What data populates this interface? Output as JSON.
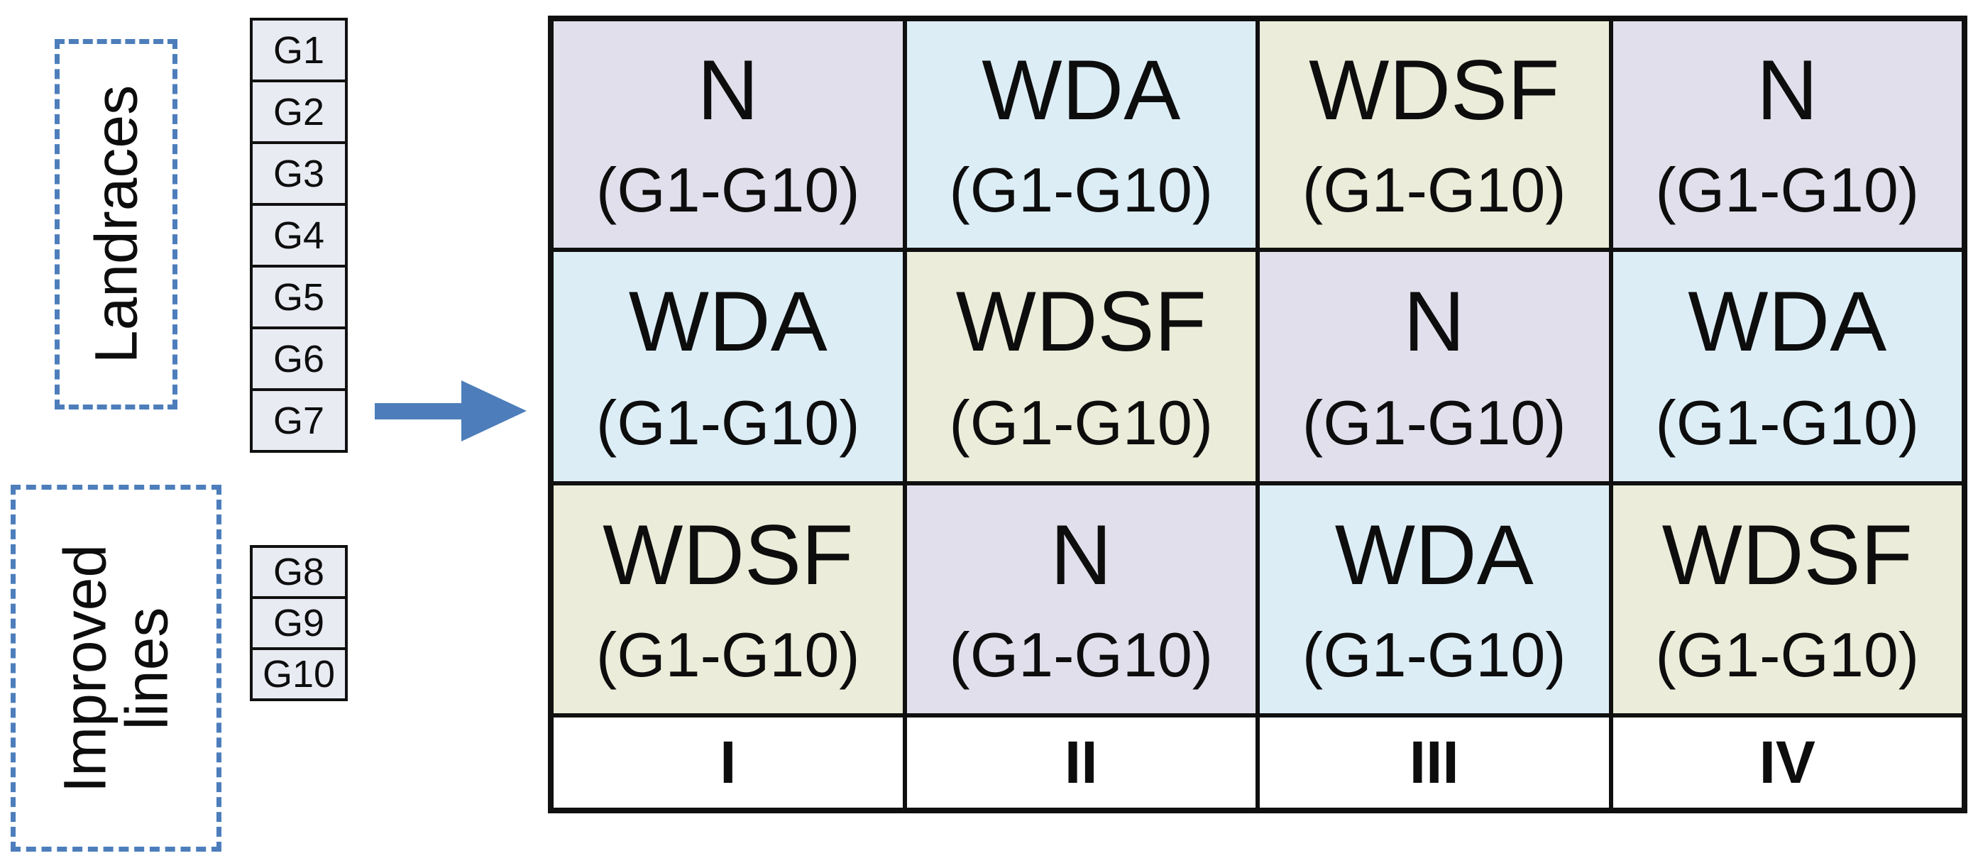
{
  "groups": [
    {
      "label": "Landraces",
      "genotypes": [
        "G1",
        "G2",
        "G3",
        "G4",
        "G5",
        "G6",
        "G7"
      ]
    },
    {
      "label": "Improved lines",
      "genotypes": [
        "G8",
        "G9",
        "G10"
      ]
    }
  ],
  "arrow_icon": "right-arrow",
  "grid": {
    "rows": [
      [
        {
          "treatment": "N",
          "range": "(G1-G10)",
          "color_key": "lavender"
        },
        {
          "treatment": "WDA",
          "range": "(G1-G10)",
          "color_key": "blue"
        },
        {
          "treatment": "WDSF",
          "range": "(G1-G10)",
          "color_key": "olive"
        },
        {
          "treatment": "N",
          "range": "(G1-G10)",
          "color_key": "lavender"
        }
      ],
      [
        {
          "treatment": "WDA",
          "range": "(G1-G10)",
          "color_key": "blue"
        },
        {
          "treatment": "WDSF",
          "range": "(G1-G10)",
          "color_key": "olive"
        },
        {
          "treatment": "N",
          "range": "(G1-G10)",
          "color_key": "lavender"
        },
        {
          "treatment": "WDA",
          "range": "(G1-G10)",
          "color_key": "blue"
        }
      ],
      [
        {
          "treatment": "WDSF",
          "range": "(G1-G10)",
          "color_key": "olive"
        },
        {
          "treatment": "N",
          "range": "(G1-G10)",
          "color_key": "lavender"
        },
        {
          "treatment": "WDA",
          "range": "(G1-G10)",
          "color_key": "blue"
        },
        {
          "treatment": "WDSF",
          "range": "(G1-G10)",
          "color_key": "olive"
        }
      ]
    ],
    "footer": [
      "I",
      "II",
      "III",
      "IV"
    ]
  },
  "colors": {
    "lavender": "#e2dfec",
    "blue": "#dcedf6",
    "olive": "#ebecd9",
    "genotype_cell": "#e9ebf3",
    "accent_blue": "#4d7ebb",
    "grid_border": "#101010",
    "footer_bg": "#ffffff"
  }
}
